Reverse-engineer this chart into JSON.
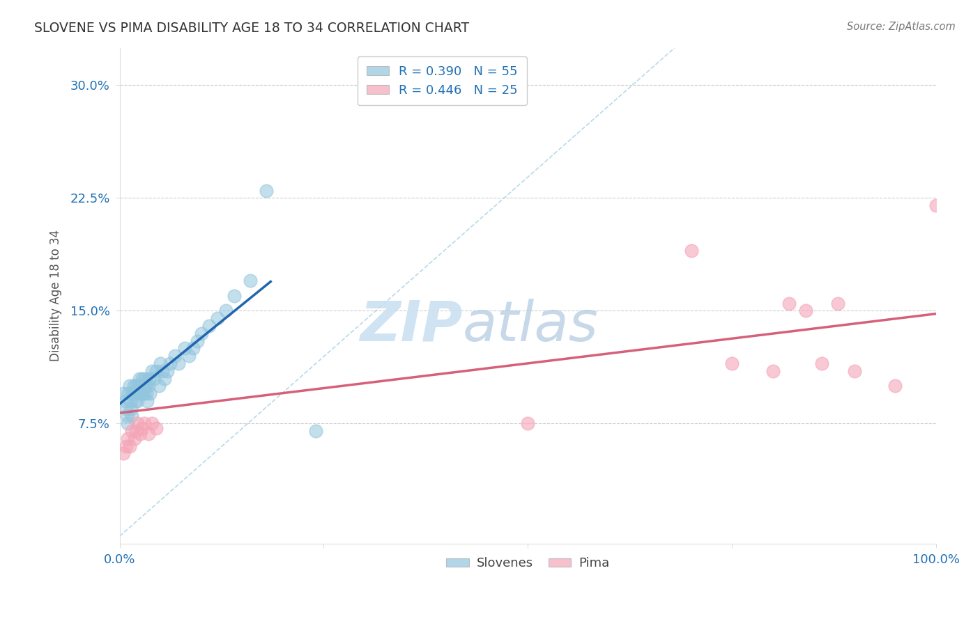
{
  "title": "SLOVENE VS PIMA DISABILITY AGE 18 TO 34 CORRELATION CHART",
  "source": "Source: ZipAtlas.com",
  "ylabel": "Disability Age 18 to 34",
  "xlim": [
    0.0,
    1.0
  ],
  "ylim": [
    -0.005,
    0.325
  ],
  "xticks": [
    0.0,
    0.25,
    0.5,
    0.75,
    1.0
  ],
  "xticklabels": [
    "0.0%",
    "",
    "",
    "",
    "100.0%"
  ],
  "yticks": [
    0.075,
    0.15,
    0.225,
    0.3
  ],
  "yticklabels": [
    "7.5%",
    "15.0%",
    "22.5%",
    "30.0%"
  ],
  "blue_R": 0.39,
  "blue_N": 55,
  "pink_R": 0.446,
  "pink_N": 25,
  "blue_color": "#92c5de",
  "pink_color": "#f4a6b8",
  "blue_line_color": "#2166ac",
  "pink_line_color": "#d6607a",
  "diagonal_color": "#92c5de",
  "background_color": "#ffffff",
  "grid_color": "#cccccc",
  "slovene_x": [
    0.005,
    0.007,
    0.008,
    0.009,
    0.01,
    0.011,
    0.012,
    0.013,
    0.014,
    0.015,
    0.016,
    0.017,
    0.018,
    0.019,
    0.02,
    0.021,
    0.022,
    0.023,
    0.024,
    0.025,
    0.026,
    0.027,
    0.028,
    0.029,
    0.03,
    0.031,
    0.032,
    0.033,
    0.034,
    0.035,
    0.036,
    0.037,
    0.04,
    0.042,
    0.045,
    0.048,
    0.05,
    0.052,
    0.055,
    0.058,
    0.062,
    0.068,
    0.072,
    0.08,
    0.085,
    0.09,
    0.095,
    0.1,
    0.11,
    0.12,
    0.13,
    0.14,
    0.16,
    0.18,
    0.24
  ],
  "slovene_y": [
    0.095,
    0.09,
    0.085,
    0.08,
    0.075,
    0.095,
    0.1,
    0.09,
    0.085,
    0.08,
    0.095,
    0.1,
    0.095,
    0.09,
    0.1,
    0.095,
    0.09,
    0.1,
    0.105,
    0.095,
    0.095,
    0.1,
    0.105,
    0.095,
    0.1,
    0.105,
    0.1,
    0.095,
    0.09,
    0.1,
    0.105,
    0.095,
    0.11,
    0.105,
    0.11,
    0.1,
    0.115,
    0.11,
    0.105,
    0.11,
    0.115,
    0.12,
    0.115,
    0.125,
    0.12,
    0.125,
    0.13,
    0.135,
    0.14,
    0.145,
    0.15,
    0.16,
    0.17,
    0.23,
    0.07
  ],
  "pima_x": [
    0.005,
    0.008,
    0.01,
    0.012,
    0.015,
    0.018,
    0.02,
    0.022,
    0.025,
    0.028,
    0.03,
    0.035,
    0.04,
    0.045,
    0.5,
    0.7,
    0.75,
    0.8,
    0.82,
    0.84,
    0.86,
    0.88,
    0.9,
    0.95,
    1.0
  ],
  "pima_y": [
    0.055,
    0.06,
    0.065,
    0.06,
    0.07,
    0.065,
    0.07,
    0.075,
    0.068,
    0.072,
    0.075,
    0.068,
    0.075,
    0.072,
    0.075,
    0.19,
    0.115,
    0.11,
    0.155,
    0.15,
    0.115,
    0.155,
    0.11,
    0.1,
    0.22
  ],
  "blue_line_x": [
    0.0,
    0.18
  ],
  "blue_line_y_intercept": 0.088,
  "blue_line_slope": 0.44,
  "pink_line_x": [
    0.0,
    1.0
  ],
  "pink_line_y_start": 0.082,
  "pink_line_y_end": 0.148
}
